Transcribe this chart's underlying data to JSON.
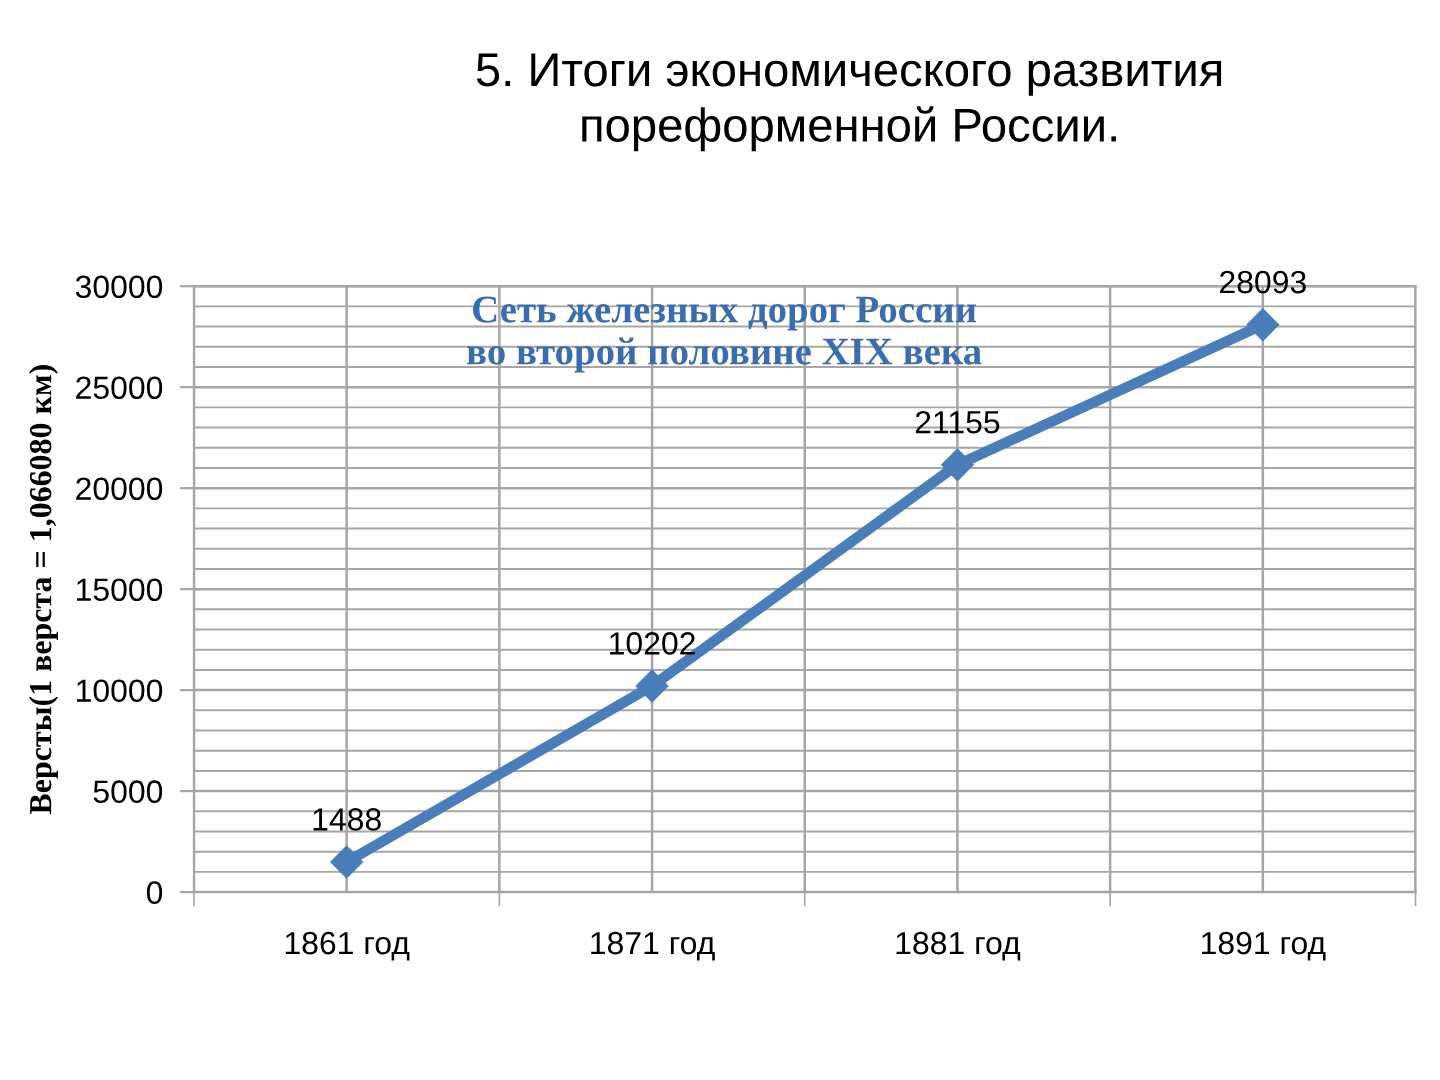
{
  "chart_data": {
    "type": "line",
    "title": "5. Итоги экономического развития\nпореформенной России.",
    "subtitle": "Сеть железных дорог России\nво второй половине XIX века",
    "ylabel": "Версты(1 верста = 1,066080 км)",
    "categories": [
      "1861 год",
      "1871 год",
      "1881 год",
      "1891 год"
    ],
    "series": [
      {
        "color": "#4a7ebb",
        "values": [
          1488,
          10202,
          21155,
          28093
        ]
      }
    ],
    "ylim": [
      0,
      30000
    ],
    "yticks": [
      0,
      5000,
      10000,
      15000,
      20000,
      25000,
      30000
    ],
    "grid": true,
    "marker": "diamond",
    "line_style": "solid",
    "data_labels": true
  }
}
